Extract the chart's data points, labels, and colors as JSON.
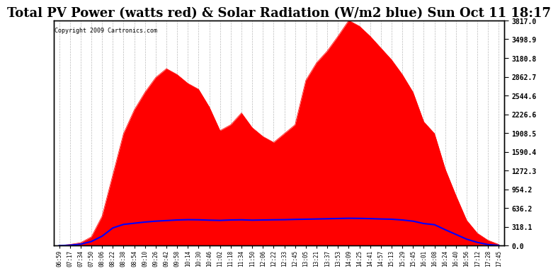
{
  "title": "Total PV Power (watts red) & Solar Radiation (W/m2 blue) Sun Oct 11 18:17",
  "copyright": "Copyright 2009 Cartronics.com",
  "ymax": 3817.0,
  "yticks": [
    0.0,
    318.1,
    636.2,
    954.2,
    1272.3,
    1590.4,
    1908.5,
    2226.6,
    2544.6,
    2862.7,
    3180.8,
    3498.9,
    3817.0
  ],
  "background_color": "#ffffff",
  "fill_color": "red",
  "line_color": "blue",
  "grid_color": "#aaaaaa",
  "title_fontsize": 13,
  "x_labels": [
    "06:59",
    "07:17",
    "07:34",
    "07:50",
    "08:06",
    "08:22",
    "08:38",
    "08:54",
    "09:10",
    "09:26",
    "09:42",
    "09:58",
    "10:14",
    "10:30",
    "10:46",
    "11:02",
    "11:18",
    "11:34",
    "11:50",
    "12:06",
    "12:22",
    "12:33",
    "12:45",
    "13:05",
    "13:21",
    "13:37",
    "13:53",
    "14:09",
    "14:25",
    "14:41",
    "14:57",
    "15:13",
    "15:29",
    "15:45",
    "16:01",
    "16:08",
    "16:24",
    "16:40",
    "16:56",
    "17:12",
    "17:28",
    "17:45"
  ],
  "pv_y": [
    0,
    20,
    50,
    150,
    500,
    1200,
    1900,
    2300,
    2600,
    2850,
    3000,
    2900,
    2750,
    2650,
    2350,
    1950,
    2050,
    2250,
    2000,
    1850,
    1750,
    1900,
    2050,
    2800,
    3100,
    3300,
    3550,
    3817,
    3720,
    3550,
    3350,
    3150,
    2900,
    2600,
    2100,
    1900,
    1300,
    850,
    430,
    210,
    90,
    20
  ],
  "solar_y": [
    0,
    8,
    25,
    70,
    160,
    300,
    360,
    380,
    400,
    415,
    425,
    435,
    440,
    438,
    432,
    428,
    435,
    438,
    432,
    435,
    438,
    440,
    445,
    448,
    452,
    456,
    460,
    464,
    462,
    458,
    452,
    448,
    435,
    415,
    375,
    355,
    270,
    190,
    110,
    55,
    18,
    4
  ]
}
